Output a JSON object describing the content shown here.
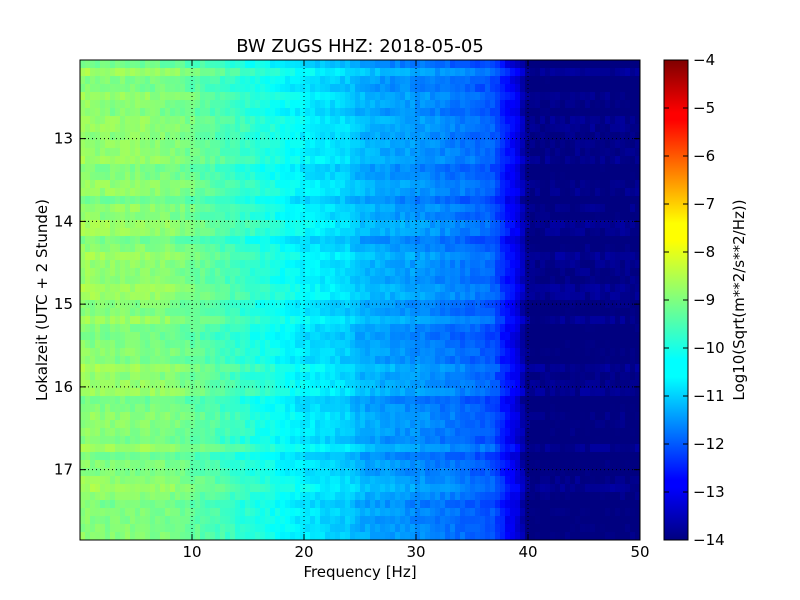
{
  "chart_data": {
    "type": "heatmap",
    "title": "BW ZUGS HHZ: 2018-05-05",
    "xlabel": "Frequency [Hz]",
    "ylabel": "Lokalzeit (UTC + 2 Stunde)",
    "xlim": [
      0,
      50
    ],
    "ylim": [
      12.05,
      17.85
    ],
    "y_inverted": true,
    "x_ticks": [
      "10",
      "20",
      "30",
      "40",
      "50"
    ],
    "y_ticks": [
      "13",
      "14",
      "15",
      "16",
      "17"
    ],
    "grid": true,
    "colormap": "jet",
    "colorbar": {
      "label": "Log10(Sqrt(m**2/s**2/Hz))",
      "range": [
        -14,
        -4
      ],
      "ticks": [
        "−4",
        "−5",
        "−6",
        "−7",
        "−8",
        "−9",
        "−10",
        "−11",
        "−12",
        "−13",
        "−14"
      ]
    },
    "profile": {
      "frequency_hz": [
        0,
        2,
        5,
        8,
        10,
        15,
        20,
        24,
        25,
        28,
        30,
        35,
        37,
        38,
        39,
        40,
        50
      ],
      "level_log10": [
        -8.8,
        -8.9,
        -8.9,
        -9.0,
        -9.2,
        -9.8,
        -10.4,
        -10.7,
        -11.0,
        -11.2,
        -11.3,
        -11.7,
        -11.9,
        -12.6,
        -13.0,
        -14.0,
        -14.0
      ]
    }
  }
}
